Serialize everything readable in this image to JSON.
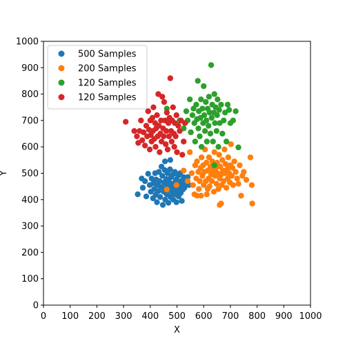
{
  "chart_data": {
    "type": "scatter",
    "title": "",
    "xlabel": "X",
    "ylabel": "Y",
    "xlim": [
      0,
      1000
    ],
    "ylim": [
      0,
      1000
    ],
    "xticks": [
      "0",
      "100",
      "200",
      "300",
      "400",
      "500",
      "600",
      "700",
      "800",
      "900",
      "1000"
    ],
    "yticks": [
      "0",
      "100",
      "200",
      "300",
      "400",
      "500",
      "600",
      "700",
      "800",
      "900",
      "1000"
    ],
    "grid": false,
    "legend_position": "top-left",
    "series": [
      {
        "name": "500 Samples",
        "color": "#1f77b4",
        "approx_center": [
          465,
          455
        ],
        "approx_spread": [
          32,
          30
        ],
        "points": [
          [
            353,
            420
          ],
          [
            368,
            480
          ],
          [
            372,
            445
          ],
          [
            380,
            470
          ],
          [
            385,
            412
          ],
          [
            392,
            498
          ],
          [
            398,
            455
          ],
          [
            402,
            430
          ],
          [
            405,
            480
          ],
          [
            410,
            405
          ],
          [
            412,
            462
          ],
          [
            415,
            440
          ],
          [
            418,
            500
          ],
          [
            420,
            418
          ],
          [
            422,
            476
          ],
          [
            425,
            390
          ],
          [
            428,
            455
          ],
          [
            430,
            432
          ],
          [
            432,
            505
          ],
          [
            435,
            470
          ],
          [
            437,
            410
          ],
          [
            440,
            448
          ],
          [
            442,
            525
          ],
          [
            445,
            490
          ],
          [
            447,
            380
          ],
          [
            450,
            430
          ],
          [
            452,
            465
          ],
          [
            454,
            512
          ],
          [
            456,
            400
          ],
          [
            458,
            445
          ],
          [
            460,
            478
          ],
          [
            462,
            420
          ],
          [
            464,
            500
          ],
          [
            466,
            455
          ],
          [
            468,
            388
          ],
          [
            470,
            468
          ],
          [
            472,
            438
          ],
          [
            474,
            515
          ],
          [
            476,
            410
          ],
          [
            478,
            485
          ],
          [
            480,
            450
          ],
          [
            482,
            428
          ],
          [
            484,
            495
          ],
          [
            486,
            400
          ],
          [
            488,
            462
          ],
          [
            490,
            440
          ],
          [
            492,
            505
          ],
          [
            494,
            420
          ],
          [
            496,
            475
          ],
          [
            498,
            390
          ],
          [
            500,
            455
          ],
          [
            502,
            430
          ],
          [
            504,
            490
          ],
          [
            506,
            412
          ],
          [
            508,
            468
          ],
          [
            510,
            445
          ],
          [
            512,
            500
          ],
          [
            514,
            425
          ],
          [
            516,
            470
          ],
          [
            518,
            395
          ],
          [
            520,
            455
          ],
          [
            522,
            438
          ],
          [
            525,
            485
          ],
          [
            528,
            445
          ],
          [
            530,
            462
          ],
          [
            535,
            478
          ],
          [
            540,
            485
          ],
          [
            545,
            455
          ],
          [
            455,
            545
          ],
          [
            475,
            550
          ]
        ]
      },
      {
        "name": "200 Samples",
        "color": "#ff7f0e",
        "approx_center": [
          655,
          505
        ],
        "approx_spread": [
          45,
          45
        ],
        "points": [
          [
            462,
            438
          ],
          [
            498,
            455
          ],
          [
            525,
            510
          ],
          [
            540,
            470
          ],
          [
            548,
            580
          ],
          [
            555,
            500
          ],
          [
            560,
            455
          ],
          [
            565,
            420
          ],
          [
            568,
            530
          ],
          [
            572,
            480
          ],
          [
            575,
            545
          ],
          [
            580,
            505
          ],
          [
            582,
            440
          ],
          [
            585,
            470
          ],
          [
            588,
            520
          ],
          [
            590,
            415
          ],
          [
            592,
            560
          ],
          [
            595,
            490
          ],
          [
            598,
            530
          ],
          [
            600,
            455
          ],
          [
            602,
            505
          ],
          [
            605,
            590
          ],
          [
            608,
            470
          ],
          [
            610,
            540
          ],
          [
            612,
            420
          ],
          [
            615,
            510
          ],
          [
            618,
            480
          ],
          [
            620,
            560
          ],
          [
            622,
            450
          ],
          [
            625,
            525
          ],
          [
            628,
            495
          ],
          [
            630,
            470
          ],
          [
            632,
            545
          ],
          [
            635,
            510
          ],
          [
            638,
            430
          ],
          [
            640,
            580
          ],
          [
            642,
            490
          ],
          [
            645,
            520
          ],
          [
            648,
            460
          ],
          [
            650,
            540
          ],
          [
            652,
            500
          ],
          [
            655,
            440
          ],
          [
            658,
            570
          ],
          [
            660,
            480
          ],
          [
            662,
            525
          ],
          [
            665,
            495
          ],
          [
            668,
            455
          ],
          [
            670,
            550
          ],
          [
            672,
            510
          ],
          [
            675,
            470
          ],
          [
            678,
            590
          ],
          [
            680,
            500
          ],
          [
            682,
            535
          ],
          [
            685,
            445
          ],
          [
            688,
            515
          ],
          [
            690,
            480
          ],
          [
            692,
            560
          ],
          [
            695,
            500
          ],
          [
            698,
            465
          ],
          [
            700,
            530
          ],
          [
            702,
            610
          ],
          [
            705,
            490
          ],
          [
            708,
            520
          ],
          [
            710,
            455
          ],
          [
            715,
            545
          ],
          [
            720,
            505
          ],
          [
            725,
            480
          ],
          [
            730,
            460
          ],
          [
            735,
            530
          ],
          [
            740,
            415
          ],
          [
            745,
            490
          ],
          [
            750,
            505
          ],
          [
            760,
            475
          ],
          [
            775,
            560
          ],
          [
            780,
            455
          ],
          [
            782,
            385
          ],
          [
            665,
            385
          ],
          [
            575,
            415
          ],
          [
            660,
            380
          ],
          [
            615,
            440
          ]
        ]
      },
      {
        "name": "120 Samples",
        "color": "#2ca02c",
        "approx_center": [
          625,
          705
        ],
        "approx_spread": [
          40,
          50
        ],
        "points": [
          [
            462,
            745
          ],
          [
            510,
            700
          ],
          [
            525,
            670
          ],
          [
            535,
            735
          ],
          [
            540,
            700
          ],
          [
            548,
            780
          ],
          [
            552,
            655
          ],
          [
            558,
            720
          ],
          [
            562,
            745
          ],
          [
            565,
            690
          ],
          [
            568,
            620
          ],
          [
            572,
            760
          ],
          [
            575,
            705
          ],
          [
            578,
            850
          ],
          [
            580,
            670
          ],
          [
            582,
            735
          ],
          [
            585,
            640
          ],
          [
            588,
            710
          ],
          [
            590,
            780
          ],
          [
            592,
            600
          ],
          [
            595,
            745
          ],
          [
            598,
            690
          ],
          [
            600,
            830
          ],
          [
            602,
            720
          ],
          [
            605,
            660
          ],
          [
            608,
            770
          ],
          [
            610,
            700
          ],
          [
            612,
            620
          ],
          [
            615,
            745
          ],
          [
            618,
            680
          ],
          [
            620,
            790
          ],
          [
            622,
            730
          ],
          [
            625,
            650
          ],
          [
            628,
            910
          ],
          [
            630,
            710
          ],
          [
            632,
            760
          ],
          [
            635,
            620
          ],
          [
            638,
            730
          ],
          [
            640,
            800
          ],
          [
            642,
            690
          ],
          [
            645,
            750
          ],
          [
            648,
            660
          ],
          [
            650,
            720
          ],
          [
            652,
            780
          ],
          [
            655,
            600
          ],
          [
            658,
            740
          ],
          [
            660,
            690
          ],
          [
            665,
            760
          ],
          [
            670,
            650
          ],
          [
            675,
            700
          ],
          [
            680,
            730
          ],
          [
            685,
            620
          ],
          [
            690,
            760
          ],
          [
            695,
            740
          ],
          [
            700,
            690
          ],
          [
            710,
            700
          ],
          [
            720,
            735
          ],
          [
            730,
            598
          ],
          [
            640,
            530
          ]
        ]
      },
      {
        "name": "120 Samples",
        "color": "#d62728",
        "approx_center": [
          440,
          650
        ],
        "approx_spread": [
          40,
          45
        ],
        "points": [
          [
            308,
            695
          ],
          [
            340,
            660
          ],
          [
            350,
            640
          ],
          [
            355,
            615
          ],
          [
            360,
            660
          ],
          [
            365,
            700
          ],
          [
            370,
            625
          ],
          [
            375,
            655
          ],
          [
            380,
            605
          ],
          [
            385,
            680
          ],
          [
            388,
            640
          ],
          [
            392,
            735
          ],
          [
            395,
            665
          ],
          [
            398,
            590
          ],
          [
            400,
            700
          ],
          [
            402,
            645
          ],
          [
            405,
            620
          ],
          [
            408,
            710
          ],
          [
            410,
            660
          ],
          [
            412,
            750
          ],
          [
            415,
            630
          ],
          [
            418,
            690
          ],
          [
            420,
            600
          ],
          [
            422,
            670
          ],
          [
            425,
            720
          ],
          [
            428,
            640
          ],
          [
            430,
            800
          ],
          [
            432,
            680
          ],
          [
            435,
            580
          ],
          [
            438,
            650
          ],
          [
            440,
            700
          ],
          [
            442,
            620
          ],
          [
            445,
            790
          ],
          [
            448,
            670
          ],
          [
            450,
            640
          ],
          [
            452,
            770
          ],
          [
            455,
            700
          ],
          [
            458,
            610
          ],
          [
            460,
            660
          ],
          [
            462,
            730
          ],
          [
            465,
            590
          ],
          [
            468,
            690
          ],
          [
            470,
            640
          ],
          [
            472,
            710
          ],
          [
            475,
            860
          ],
          [
            478,
            660
          ],
          [
            480,
            620
          ],
          [
            482,
            700
          ],
          [
            485,
            750
          ],
          [
            488,
            650
          ],
          [
            490,
            600
          ],
          [
            492,
            690
          ],
          [
            495,
            640
          ],
          [
            498,
            720
          ],
          [
            500,
            580
          ],
          [
            505,
            680
          ],
          [
            510,
            660
          ],
          [
            515,
            700
          ],
          [
            520,
            570
          ],
          [
            525,
            620
          ],
          [
            530,
            690
          ]
        ]
      }
    ]
  }
}
